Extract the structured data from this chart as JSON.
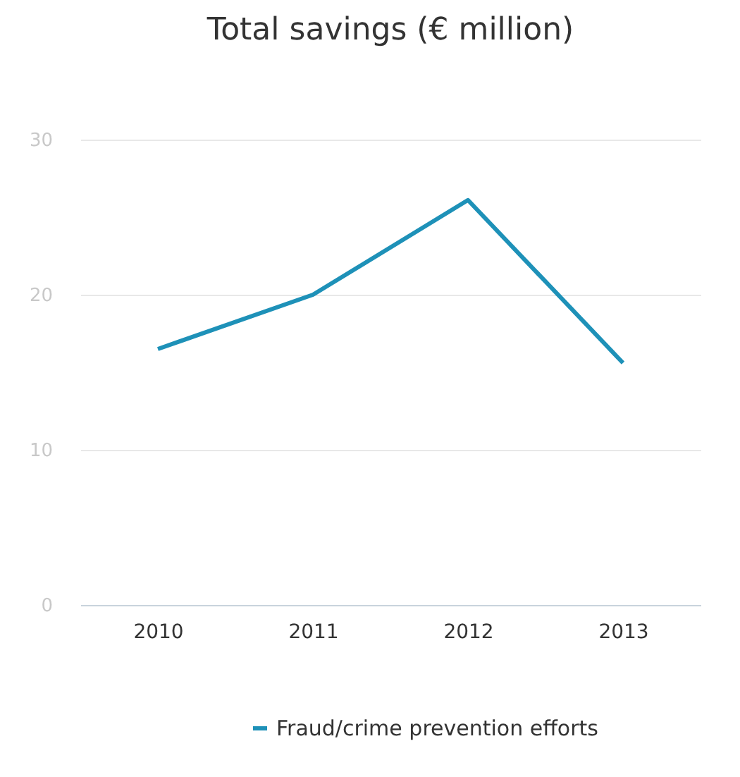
{
  "chart_data": {
    "type": "line",
    "title": "Total savings (€ million)",
    "categories": [
      "2010",
      "2011",
      "2012",
      "2013"
    ],
    "series": [
      {
        "name": "Fraud/crime prevention efforts",
        "color": "#1e91b8",
        "values": [
          16.5,
          20,
          26.1,
          15.6
        ]
      }
    ],
    "ylim": [
      0,
      30
    ],
    "yticks": [
      0,
      10,
      20,
      30
    ],
    "grid": "y",
    "legend": "bottom",
    "marker": "none",
    "line_style": "solid"
  }
}
